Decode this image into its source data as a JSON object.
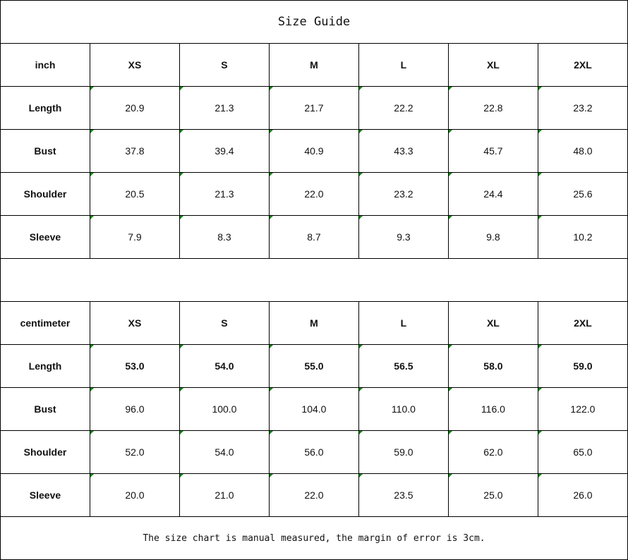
{
  "title": "Size Guide",
  "tables": [
    {
      "unit": "inch",
      "sizes": [
        "XS",
        "S",
        "M",
        "L",
        "XL",
        "2XL"
      ],
      "rows": [
        {
          "label": "Length",
          "values": [
            "20.9",
            "21.3",
            "21.7",
            "22.2",
            "22.8",
            "23.2"
          ]
        },
        {
          "label": "Bust",
          "values": [
            "37.8",
            "39.4",
            "40.9",
            "43.3",
            "45.7",
            "48.0"
          ]
        },
        {
          "label": "Shoulder",
          "values": [
            "20.5",
            "21.3",
            "22.0",
            "23.2",
            "24.4",
            "25.6"
          ]
        },
        {
          "label": "Sleeve",
          "values": [
            "7.9",
            "8.3",
            "8.7",
            "9.3",
            "9.8",
            "10.2"
          ]
        }
      ]
    },
    {
      "unit": "centimeter",
      "sizes": [
        "XS",
        "S",
        "M",
        "L",
        "XL",
        "2XL"
      ],
      "rows": [
        {
          "label": "Length",
          "values": [
            "53.0",
            "54.0",
            "55.0",
            "56.5",
            "58.0",
            "59.0"
          ]
        },
        {
          "label": "Bust",
          "values": [
            "96.0",
            "100.0",
            "104.0",
            "110.0",
            "116.0",
            "122.0"
          ]
        },
        {
          "label": "Shoulder",
          "values": [
            "52.0",
            "54.0",
            "56.0",
            "59.0",
            "62.0",
            "65.0"
          ]
        },
        {
          "label": "Sleeve",
          "values": [
            "20.0",
            "21.0",
            "22.0",
            "23.5",
            "25.0",
            "26.0"
          ]
        }
      ]
    }
  ],
  "note": "The size chart is manual measured, the margin of error is 3cm.",
  "colors": {
    "cell_marker": "#0a8a0a",
    "border": "#000000"
  }
}
